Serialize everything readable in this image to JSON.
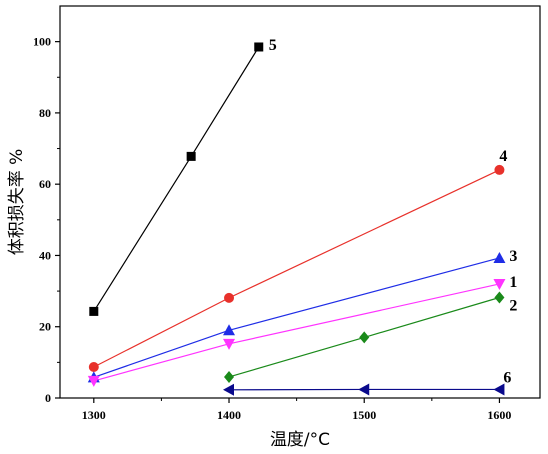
{
  "chart_data": {
    "type": "line",
    "title": "",
    "xlabel": "温度/°C",
    "ylabel": "体积损失率 %",
    "xlim": [
      1275,
      1630
    ],
    "ylim": [
      0,
      110
    ],
    "xticks": [
      1300,
      1400,
      1500,
      1600
    ],
    "yticks": [
      0,
      20,
      40,
      60,
      80,
      100
    ],
    "grid": false,
    "legend": "none",
    "series": [
      {
        "name": "5",
        "color": "#000000",
        "marker": "square",
        "x": [
          1300,
          1372,
          1422
        ],
        "y": [
          24.3,
          67.8,
          98.5
        ]
      },
      {
        "name": "4",
        "color": "#e8312b",
        "marker": "circle",
        "x": [
          1300,
          1400,
          1600
        ],
        "y": [
          8.7,
          28.1,
          64.0
        ]
      },
      {
        "name": "3",
        "color": "#1f2de6",
        "marker": "triangle-up",
        "x": [
          1300,
          1400,
          1600
        ],
        "y": [
          5.8,
          19.0,
          39.3
        ]
      },
      {
        "name": "1",
        "color": "#ff33ff",
        "marker": "triangle-down",
        "x": [
          1300,
          1400,
          1600
        ],
        "y": [
          4.8,
          15.2,
          32.0
        ]
      },
      {
        "name": "2",
        "color": "#1a8a1a",
        "marker": "diamond",
        "x": [
          1400,
          1500,
          1600
        ],
        "y": [
          5.9,
          17.0,
          28.2
        ]
      },
      {
        "name": "6",
        "color": "#0a0a8c",
        "marker": "triangle-left",
        "x": [
          1400,
          1500,
          1600
        ],
        "y": [
          2.3,
          2.4,
          2.4
        ]
      }
    ]
  }
}
